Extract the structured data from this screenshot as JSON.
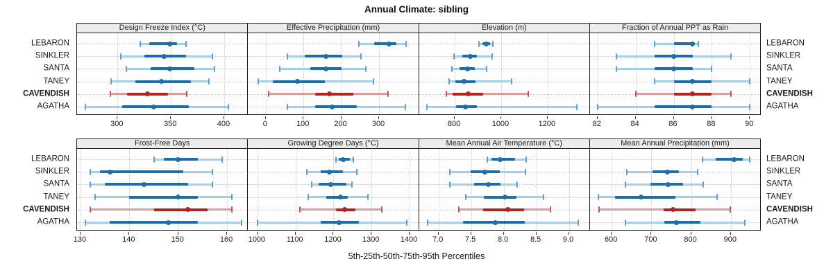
{
  "title": "Annual Climate: sibling",
  "xlabel": "5th-25th-50th-75th-95th Percentiles",
  "percentile_labels": [
    "5th",
    "25th",
    "50th",
    "75th",
    "95th"
  ],
  "categories": [
    "LEBARON",
    "SINKLER",
    "SANTA",
    "TANEY",
    "CAVENDISH",
    "AGATHA"
  ],
  "highlight_category": "CAVENDISH",
  "colors": {
    "blue_main": "#1b6fad",
    "blue_range": "#a8cde6",
    "blue_cap": "#5e9fd1",
    "red_main": "#b22424",
    "red_range": "#dd9c9c",
    "red_cap": "#c25555",
    "strip_bg": "#ececec",
    "panel_border": "#1c1c1c",
    "gridline": "#c3c7cb"
  },
  "chart_data": {
    "type": "scatter",
    "subtype": "percentile-dotplot",
    "title": "Annual Climate: sibling",
    "xlabel": "5th-25th-50th-75th-95th Percentiles",
    "legend_position": "none",
    "grid": "dotted",
    "layout": "4x2 lattice, category labels on both left and right sides",
    "panels": [
      {
        "title": "Design Freeze Index (°C)",
        "xlim": [
          262,
          421
        ],
        "ticks": [
          300,
          350,
          400
        ],
        "tick_labels": [
          "300",
          "350",
          "400"
        ],
        "rows": [
          {
            "name": "LEBARON",
            "p": [
              321,
              330,
              349,
              356,
              364
            ]
          },
          {
            "name": "SINKLER",
            "p": [
              303,
              325,
              344,
              364,
              389
            ]
          },
          {
            "name": "SANTA",
            "p": [
              308,
              331,
              349,
              372,
              391
            ]
          },
          {
            "name": "TANEY",
            "p": [
              294,
              317,
              341,
              369,
              386
            ]
          },
          {
            "name": "CAVENDISH",
            "p": [
              293,
              309,
              328,
              347,
              365
            ]
          },
          {
            "name": "AGATHA",
            "p": [
              270,
              304,
              334,
              367,
              404
            ]
          }
        ]
      },
      {
        "title": "Effective Precipitation (mm)",
        "xlim": [
          -47,
          402
        ],
        "ticks": [
          0,
          100,
          200,
          300
        ],
        "tick_labels": [
          "0",
          "100",
          "200",
          "300"
        ],
        "rows": [
          {
            "name": "LEBARON",
            "p": [
              247,
              288,
              327,
              346,
              372
            ]
          },
          {
            "name": "SINKLER",
            "p": [
              58,
              103,
              160,
              202,
              253
            ]
          },
          {
            "name": "SANTA",
            "p": [
              37,
              118,
              160,
              200,
              265
            ]
          },
          {
            "name": "TANEY",
            "p": [
              -20,
              19,
              84,
              157,
              286
            ]
          },
          {
            "name": "CAVENDISH",
            "p": [
              7,
              130,
              169,
              232,
              323
            ]
          },
          {
            "name": "AGATHA",
            "p": [
              58,
              130,
              175,
              241,
              369
            ]
          }
        ]
      },
      {
        "title": "Elevation (m)",
        "xlim": [
          646,
          1376
        ],
        "ticks": [
          800,
          1000,
          1200
        ],
        "tick_labels": [
          "800",
          "1000",
          "1200"
        ],
        "rows": [
          {
            "name": "LEBARON",
            "p": [
              906,
              919,
              936,
              953,
              965
            ]
          },
          {
            "name": "SINKLER",
            "p": [
              797,
              832,
              866,
              896,
              960
            ]
          },
          {
            "name": "SANTA",
            "p": [
              787,
              822,
              854,
              886,
              936
            ]
          },
          {
            "name": "TANEY",
            "p": [
              777,
              802,
              840,
              891,
              1044
            ]
          },
          {
            "name": "CAVENDISH",
            "p": [
              765,
              792,
              858,
              921,
              1117
            ]
          },
          {
            "name": "AGATHA",
            "p": [
              680,
              807,
              846,
              896,
              1327
            ]
          }
        ]
      },
      {
        "title": "Fraction of Annual PPT as Rain",
        "xlim": [
          81.6,
          90.5
        ],
        "ticks": [
          82,
          84,
          86,
          88,
          90
        ],
        "tick_labels": [
          "82",
          "84",
          "86",
          "88",
          "90"
        ],
        "rows": [
          {
            "name": "LEBARON",
            "p": [
              85,
              86,
              87,
              87.1,
              87.3
            ]
          },
          {
            "name": "SINKLER",
            "p": [
              83,
              85,
              86,
              87,
              89
            ]
          },
          {
            "name": "SANTA",
            "p": [
              83,
              85,
              86,
              87,
              88
            ]
          },
          {
            "name": "TANEY",
            "p": [
              85,
              86,
              87,
              88,
              90
            ]
          },
          {
            "name": "CAVENDISH",
            "p": [
              84,
              86,
              87,
              88,
              89
            ]
          },
          {
            "name": "AGATHA",
            "p": [
              82,
              85,
              87,
              88,
              90
            ]
          }
        ]
      },
      {
        "title": "Frost-Free Days",
        "xlim": [
          129.3,
          164
        ],
        "ticks": [
          130,
          140,
          150,
          160
        ],
        "tick_labels": [
          "130",
          "140",
          "150",
          "160"
        ],
        "rows": [
          {
            "name": "LEBARON",
            "p": [
              145,
              147,
              150,
              154,
              159
            ]
          },
          {
            "name": "SINKLER",
            "p": [
              132,
              134,
              136,
              151,
              157
            ]
          },
          {
            "name": "SANTA",
            "p": [
              132,
              135,
              143,
              152,
              157
            ]
          },
          {
            "name": "TANEY",
            "p": [
              133,
              140,
              150,
              154,
              161
            ]
          },
          {
            "name": "CAVENDISH",
            "p": [
              132,
              145,
              152,
              156,
              161
            ]
          },
          {
            "name": "AGATHA",
            "p": [
              131,
              136,
              148,
              154,
              163
            ]
          }
        ]
      },
      {
        "title": "Growing Degree Days (°C)",
        "xlim": [
          975,
          1421
        ],
        "ticks": [
          1000,
          1100,
          1200,
          1300,
          1400
        ],
        "tick_labels": [
          "1000",
          "1100",
          "1200",
          "1300",
          "1400"
        ],
        "rows": [
          {
            "name": "LEBARON",
            "p": [
              1207,
              1213,
              1225,
              1243,
              1252
            ]
          },
          {
            "name": "SINKLER",
            "p": [
              1129,
              1166,
              1190,
              1225,
              1261
            ]
          },
          {
            "name": "SANTA",
            "p": [
              1143,
              1160,
              1193,
              1234,
              1248
            ]
          },
          {
            "name": "TANEY",
            "p": [
              1133,
              1180,
              1218,
              1237,
              1290
            ]
          },
          {
            "name": "CAVENDISH",
            "p": [
              1111,
              1207,
              1230,
              1258,
              1327
            ]
          },
          {
            "name": "AGATHA",
            "p": [
              1000,
              1166,
              1215,
              1267,
              1392
            ]
          }
        ]
      },
      {
        "title": "Mean Annual Air Temperature (°C)",
        "xlim": [
          6.7,
          9.3
        ],
        "ticks": [
          7.0,
          7.5,
          8.0,
          8.5,
          9.0
        ],
        "tick_labels": [
          "7.0",
          "7.5",
          "8.0",
          "8.5",
          "9.0"
        ],
        "rows": [
          {
            "name": "LEBARON",
            "p": [
              7.75,
              7.81,
              7.95,
              8.17,
              8.34
            ]
          },
          {
            "name": "SINKLER",
            "p": [
              7.17,
              7.49,
              7.71,
              7.94,
              8.33
            ]
          },
          {
            "name": "SANTA",
            "p": [
              7.17,
              7.55,
              7.76,
              7.95,
              8.21
            ]
          },
          {
            "name": "TANEY",
            "p": [
              7.42,
              7.69,
              8.02,
              8.2,
              8.61
            ]
          },
          {
            "name": "CAVENDISH",
            "p": [
              7.31,
              7.68,
              8.06,
              8.31,
              8.72
            ]
          },
          {
            "name": "AGATHA",
            "p": [
              6.83,
              7.38,
              7.87,
              8.32,
              9.14
            ]
          }
        ]
      },
      {
        "title": "Mean Annual Precipitation (mm)",
        "xlim": [
          545,
          972
        ],
        "ticks": [
          600,
          700,
          800,
          900
        ],
        "tick_labels": [
          "600",
          "700",
          "800",
          "900"
        ],
        "rows": [
          {
            "name": "LEBARON",
            "p": [
              828,
              862,
              908,
              930,
              947
            ]
          },
          {
            "name": "SINKLER",
            "p": [
              638,
              703,
              740,
              769,
              817
            ]
          },
          {
            "name": "SANTA",
            "p": [
              635,
              697,
              742,
              780,
              830
            ]
          },
          {
            "name": "TANEY",
            "p": [
              567,
              609,
              674,
              760,
              865
            ]
          },
          {
            "name": "CAVENDISH",
            "p": [
              569,
              731,
              754,
              812,
              898
            ]
          },
          {
            "name": "AGATHA",
            "p": [
              635,
              732,
              763,
              824,
              935
            ]
          }
        ]
      }
    ]
  }
}
